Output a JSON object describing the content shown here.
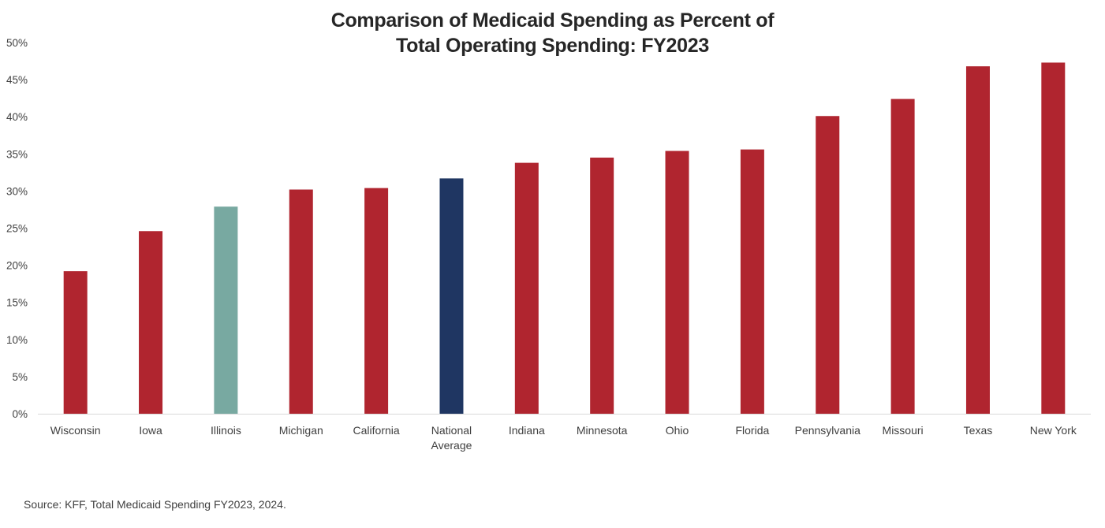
{
  "chart_data": {
    "type": "bar",
    "title_lines": [
      "Comparison of Medicaid Spending as Percent of",
      "Total Operating Spending: FY2023"
    ],
    "categories": [
      [
        "Wisconsin"
      ],
      [
        "Iowa"
      ],
      [
        "Illinois"
      ],
      [
        "Michigan"
      ],
      [
        "California"
      ],
      [
        "National",
        "Average"
      ],
      [
        "Indiana"
      ],
      [
        "Minnesota"
      ],
      [
        "Ohio"
      ],
      [
        "Florida"
      ],
      [
        "Pennsylvania"
      ],
      [
        "Missouri"
      ],
      [
        "Texas"
      ],
      [
        "New York"
      ]
    ],
    "values": [
      19.2,
      24.6,
      27.9,
      30.2,
      30.4,
      31.7,
      33.8,
      34.5,
      35.4,
      35.6,
      40.1,
      42.4,
      46.8,
      47.3
    ],
    "highlight": {
      "2": "#78a9a1",
      "5": "#1f3662"
    },
    "ylim": [
      0,
      50
    ],
    "yticks": [
      0,
      5,
      10,
      15,
      20,
      25,
      30,
      35,
      40,
      45,
      50
    ],
    "ytick_suffix": "%",
    "xlabel": "",
    "ylabel": "",
    "grid": false
  },
  "colors": {
    "bar": "#b0252f",
    "axis": "#d9d9d9"
  },
  "source": "Source: KFF, Total Medicaid Spending FY2023, 2024."
}
